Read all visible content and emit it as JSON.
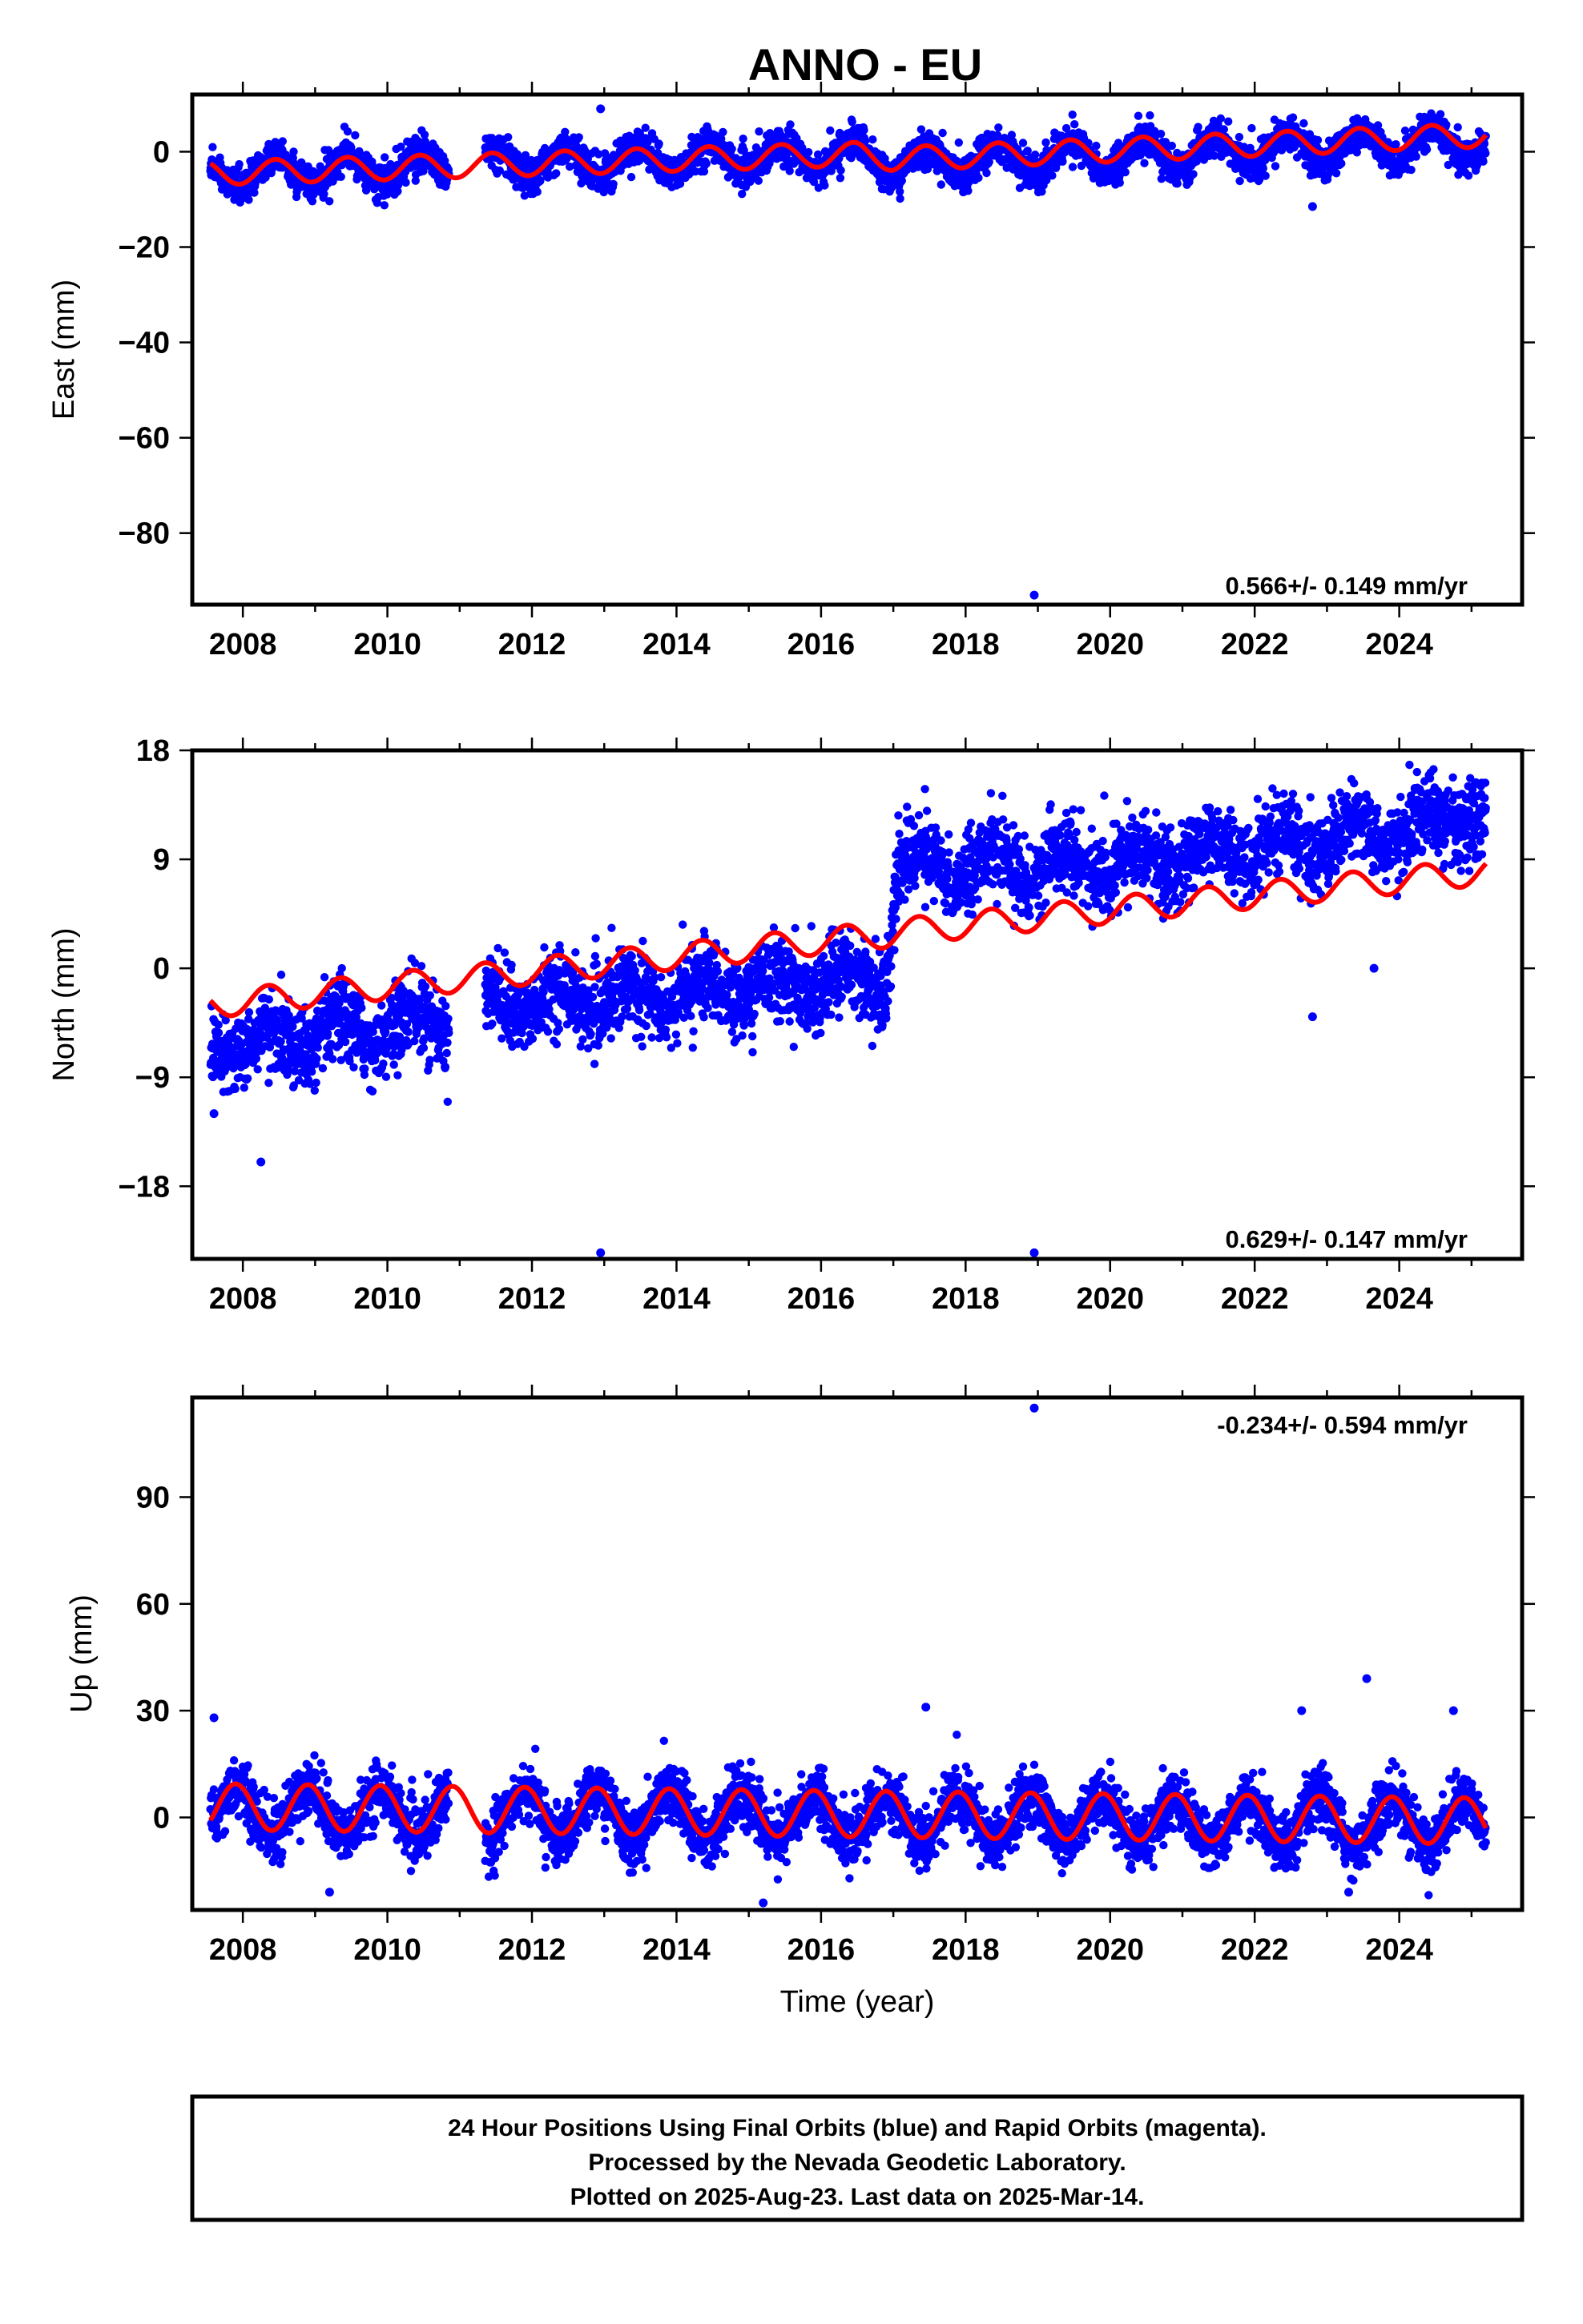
{
  "chart_data": {
    "title": "ANNO - EU",
    "type": "scatter",
    "xlim": [
      2007.3,
      2025.7
    ],
    "x_ticks": [
      2008,
      2010,
      2012,
      2014,
      2016,
      2018,
      2020,
      2022,
      2024
    ],
    "xlabel": "Time (year)",
    "series_colors": {
      "observations": "#0000ff",
      "model": "#ff0000"
    },
    "panels": [
      {
        "id": "east",
        "ylabel": "East (mm)",
        "ylim": [
          -95,
          12
        ],
        "y_ticks": [
          0,
          -20,
          -40,
          -60,
          -80
        ],
        "rate_text": "0.566+/- 0.149 mm/yr",
        "rate": 0.566,
        "rate_sigma": 0.149,
        "data_start": 2007.55,
        "data_end": 2025.2,
        "gap": [
          2010.85,
          2011.35
        ],
        "noise": 1.8,
        "outliers": [
          [
            2012.95,
            9
          ],
          [
            2018.95,
            -93
          ],
          [
            2022.8,
            -11.5
          ]
        ],
        "obs_trend": [
          [
            2007.55,
            -4.5
          ],
          [
            2016.5,
            -0.5
          ],
          [
            2017.0,
            -2.5
          ],
          [
            2025.2,
            2.0
          ]
        ],
        "obs_amp": 3.0,
        "obs_phase": 0.2,
        "model_trend": [
          [
            2007.55,
            -4.5
          ],
          [
            2016.5,
            -0.5
          ],
          [
            2017.0,
            -1.5
          ],
          [
            2025.2,
            3.5
          ]
        ],
        "model_amp": 2.5,
        "model_phase": 0.2,
        "no_data_text": null
      },
      {
        "id": "north",
        "ylabel": "North (mm)",
        "ylim": [
          -24,
          18
        ],
        "y_ticks": [
          18,
          9,
          0,
          -9,
          -18
        ],
        "rate_text": "0.629+/- 0.147 mm/yr",
        "rate": 0.629,
        "rate_sigma": 0.147,
        "data_start": 2007.55,
        "data_end": 2025.2,
        "gap": [
          2010.85,
          2011.35
        ],
        "noise": 1.6,
        "outliers": [
          [
            2012.95,
            -23.5
          ],
          [
            2018.95,
            -23.5
          ],
          [
            2007.6,
            -12
          ],
          [
            2008.25,
            -16
          ],
          [
            2022.8,
            -4
          ],
          [
            2023.65,
            0
          ]
        ],
        "obs_trend": [
          [
            2007.55,
            -6.5
          ],
          [
            2010.8,
            -4.5
          ],
          [
            2011.4,
            -3.0
          ],
          [
            2016.9,
            -1.0
          ],
          [
            2017.05,
            8.5
          ],
          [
            2020.3,
            8.5
          ],
          [
            2025.2,
            12.5
          ]
        ],
        "obs_amp": 1.2,
        "obs_phase": 0.1,
        "model_trend": [
          [
            2007.55,
            -3.0
          ],
          [
            2016.9,
            2.8
          ],
          [
            2017.05,
            3.0
          ],
          [
            2025.2,
            8.0
          ]
        ],
        "model_amp": 1.1,
        "model_phase": 0.1
      },
      {
        "id": "up",
        "ylabel": "Up (mm)",
        "ylim": [
          -26,
          118
        ],
        "y_ticks": [
          90,
          60,
          30,
          0
        ],
        "rate_text": "-0.234+/- 0.594 mm/yr",
        "rate": -0.234,
        "rate_sigma": 0.594,
        "data_start": 2007.55,
        "data_end": 2025.2,
        "gap": [
          2010.85,
          2011.35
        ],
        "noise": 4.0,
        "outliers": [
          [
            2018.95,
            115
          ],
          [
            2007.6,
            28
          ],
          [
            2017.45,
            31
          ],
          [
            2023.55,
            39
          ],
          [
            2024.75,
            30
          ],
          [
            2022.65,
            30
          ],
          [
            2023.3,
            -21
          ],
          [
            2015.2,
            -24
          ],
          [
            2009.2,
            -21
          ]
        ],
        "obs_trend": [
          [
            2007.55,
            2.0
          ],
          [
            2025.2,
            -2.0
          ]
        ],
        "obs_amp": 6.5,
        "obs_phase": 0.65,
        "model_trend": [
          [
            2007.55,
            3.0
          ],
          [
            2025.2,
            -1.0
          ]
        ],
        "model_amp": 6.5,
        "model_phase": 0.65
      }
    ]
  },
  "footer": {
    "line1": "24 Hour Positions Using Final Orbits (blue) and Rapid Orbits (magenta).",
    "line2": "Processed by the Nevada Geodetic Laboratory.",
    "line3": "Plotted on 2025-Aug-23. Last data on 2025-Mar-14."
  }
}
